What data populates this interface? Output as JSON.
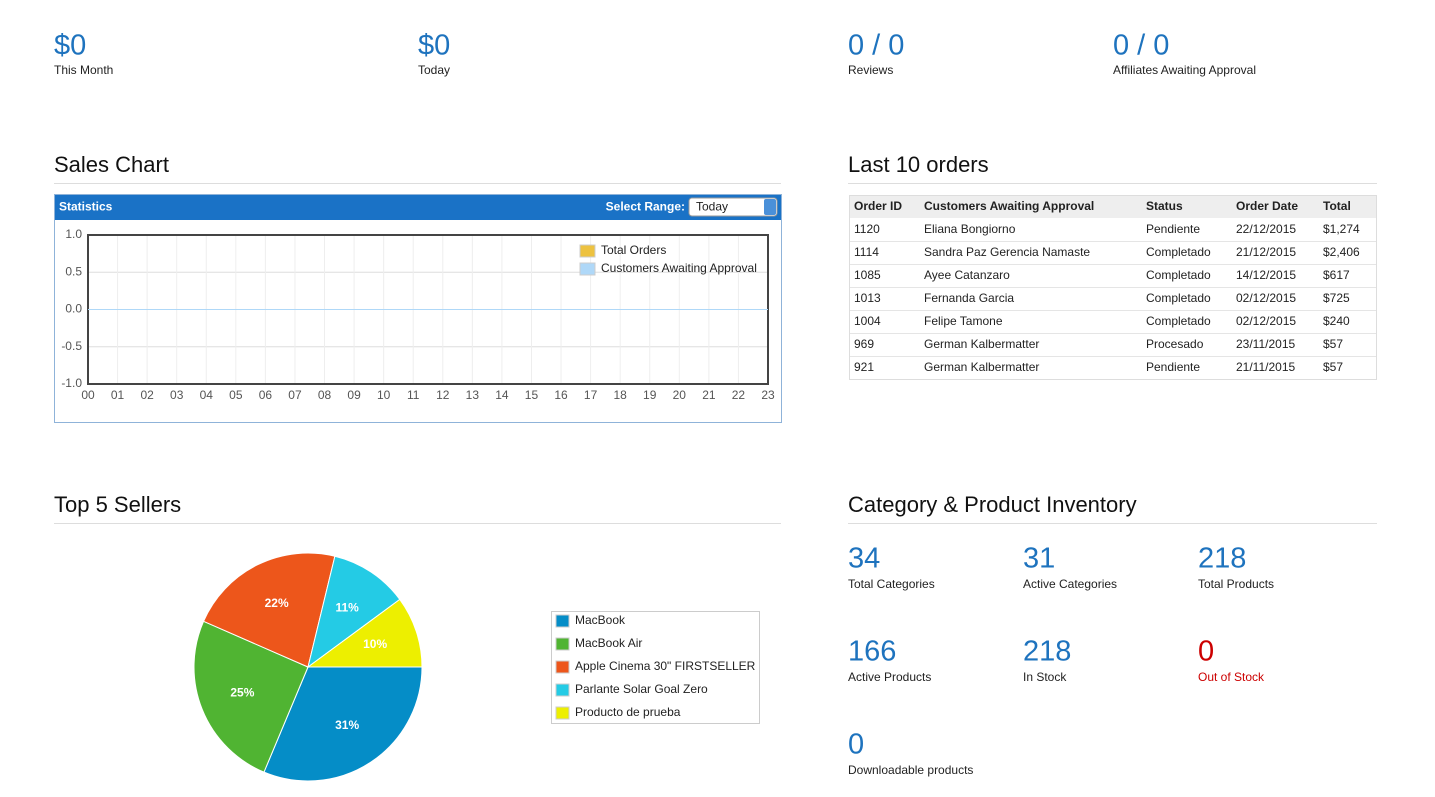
{
  "stats": [
    {
      "value": "$0",
      "label": "This Month"
    },
    {
      "value": "$0",
      "label": "Today"
    },
    {
      "value": "0 / 0",
      "label": "Reviews"
    },
    {
      "value": "0 / 0",
      "label": "Affiliates Awaiting Approval"
    }
  ],
  "sales_heading": "Sales Chart",
  "orders_heading": "Last 10 orders",
  "sellers_heading": "Top 5 Sellers",
  "inventory_heading": "Category & Product Inventory",
  "statistics_panel": {
    "title": "Statistics",
    "range_label": "Select Range:",
    "range_value": "Today"
  },
  "table": {
    "headers": [
      "Order ID",
      "Customers Awaiting Approval",
      "Status",
      "Order Date",
      "Total"
    ],
    "rows": [
      [
        "1120",
        "Eliana Bongiorno",
        "Pendiente",
        "22/12/2015",
        "$1,274"
      ],
      [
        "1114",
        "Sandra Paz Gerencia Namaste",
        "Completado",
        "21/12/2015",
        "$2,406"
      ],
      [
        "1085",
        "Ayee Catanzaro",
        "Completado",
        "14/12/2015",
        "$617"
      ],
      [
        "1013",
        "Fernanda Garcia",
        "Completado",
        "02/12/2015",
        "$725"
      ],
      [
        "1004",
        "Felipe Tamone",
        "Completado",
        "02/12/2015",
        "$240"
      ],
      [
        "969",
        "German Kalbermatter",
        "Procesado",
        "23/11/2015",
        "$57"
      ],
      [
        "921",
        "German Kalbermatter",
        "Pendiente",
        "21/11/2015",
        "$57"
      ]
    ]
  },
  "inventory": [
    {
      "value": 34,
      "label": "Total Categories"
    },
    {
      "value": 31,
      "label": "Active Categories"
    },
    {
      "value": 218,
      "label": "Total Products"
    },
    {
      "value": 166,
      "label": "Active Products"
    },
    {
      "value": 218,
      "label": "In Stock"
    },
    {
      "value": 0,
      "label": "Out of Stock",
      "color": "#cc0000"
    },
    {
      "value": 0,
      "label": "Downloadable products"
    }
  ],
  "chart_data": [
    {
      "type": "line",
      "categories": [
        "00",
        "01",
        "02",
        "03",
        "04",
        "05",
        "06",
        "07",
        "08",
        "09",
        "10",
        "11",
        "12",
        "13",
        "14",
        "15",
        "16",
        "17",
        "18",
        "19",
        "20",
        "21",
        "22",
        "23"
      ],
      "series": [
        {
          "name": "Total Orders",
          "color": "#edc240",
          "values": [
            0,
            0,
            0,
            0,
            0,
            0,
            0,
            0,
            0,
            0,
            0,
            0,
            0,
            0,
            0,
            0,
            0,
            0,
            0,
            0,
            0,
            0,
            0,
            0
          ]
        },
        {
          "name": "Customers Awaiting Approval",
          "color": "#afd8f8",
          "values": [
            0,
            0,
            0,
            0,
            0,
            0,
            0,
            0,
            0,
            0,
            0,
            0,
            0,
            0,
            0,
            0,
            0,
            0,
            0,
            0,
            0,
            0,
            0,
            0
          ]
        }
      ],
      "ylim": [
        -1,
        1
      ],
      "yticks": [
        {
          "value": 1,
          "label": "1.0"
        },
        {
          "value": 0.5,
          "label": "0.5"
        },
        {
          "value": 0,
          "label": "0.0"
        },
        {
          "value": -0.5,
          "label": "-0.5"
        },
        {
          "value": -1,
          "label": "-1.0"
        }
      ],
      "grid": true
    },
    {
      "type": "pie",
      "categories": [
        "MacBook",
        "MacBook Air",
        "Apple Cinema 30\" FIRSTSELLER",
        "Parlante Solar Goal Zero",
        "Producto de prueba"
      ],
      "values": [
        31,
        25,
        22,
        11,
        10
      ],
      "value_labels": [
        "31%",
        "25%",
        "22%",
        "11%",
        "10%"
      ],
      "colors": [
        "#058dc7",
        "#50b432",
        "#ed561b",
        "#24cbe5",
        "#edef00"
      ]
    }
  ]
}
